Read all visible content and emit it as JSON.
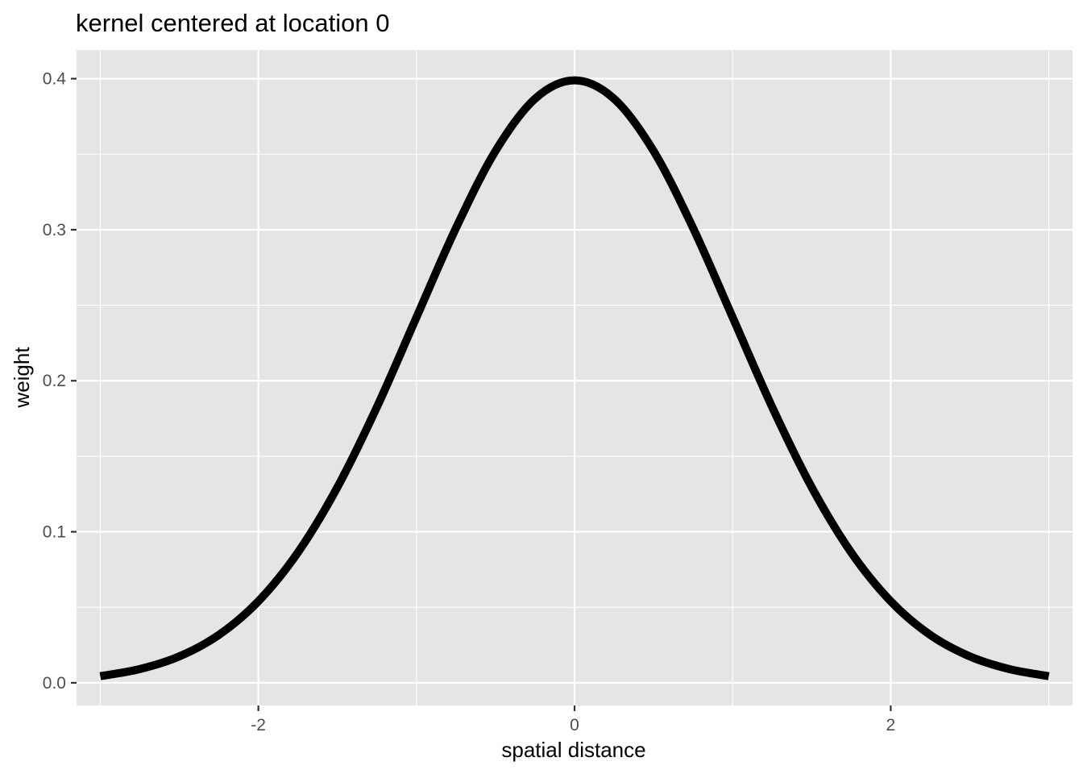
{
  "chart_data": {
    "type": "line",
    "title": "kernel centered at location 0",
    "xlabel": "spatial distance",
    "ylabel": "weight",
    "xlim": [
      -3.15,
      3.15
    ],
    "ylim": [
      -0.015,
      0.419
    ],
    "x_ticks": [
      -2,
      0,
      2
    ],
    "x_tick_labels": [
      "-2",
      "0",
      "2"
    ],
    "y_ticks": [
      0.0,
      0.1,
      0.2,
      0.3,
      0.4
    ],
    "y_tick_labels": [
      "0.0",
      "0.1",
      "0.2",
      "0.3",
      "0.4"
    ],
    "x_minor_ticks": [
      -3,
      -1,
      1,
      3
    ],
    "y_minor_ticks": [
      0.05,
      0.15,
      0.25,
      0.35
    ],
    "grid": true,
    "legend": "none",
    "series": [
      {
        "x": [
          -3.0,
          -2.75,
          -2.5,
          -2.25,
          -2.0,
          -1.75,
          -1.5,
          -1.25,
          -1.0,
          -0.75,
          -0.5,
          -0.25,
          0.0,
          0.25,
          0.5,
          0.75,
          1.0,
          1.25,
          1.5,
          1.75,
          2.0,
          2.25,
          2.5,
          2.75,
          3.0
        ],
        "y": [
          0.0044,
          0.0091,
          0.0175,
          0.0317,
          0.054,
          0.0863,
          0.1295,
          0.1826,
          0.242,
          0.3011,
          0.3521,
          0.3867,
          0.3989,
          0.3867,
          0.3521,
          0.3011,
          0.242,
          0.1826,
          0.1295,
          0.0863,
          0.054,
          0.0317,
          0.0175,
          0.0091,
          0.0044
        ],
        "color": "#000000"
      }
    ],
    "colors": {
      "panel_background": "#e5e5e5",
      "grid": "#ffffff",
      "tick": "#333333",
      "line": "#000000"
    }
  }
}
